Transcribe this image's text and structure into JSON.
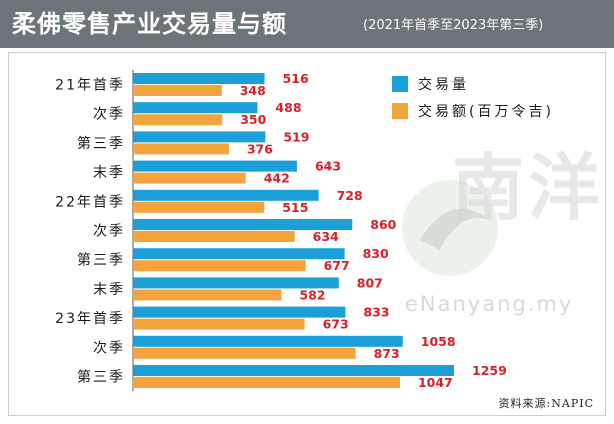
{
  "header": {
    "title": "柔佛零售产业交易量与额",
    "subtitle": "(2021年首季至2023年第三季)"
  },
  "legend": [
    {
      "label": "交易量",
      "color": "#1a9fd8"
    },
    {
      "label": "交易额(百万令吉)",
      "color": "#f5a33c"
    }
  ],
  "watermark": {
    "text": "南洋",
    "url": "eNanyang.my"
  },
  "source": "资料来源:NAPIC",
  "chart_data": {
    "type": "bar",
    "orientation": "horizontal",
    "categories": [
      "21年首季",
      "次季",
      "第三季",
      "末季",
      "22年首季",
      "次季",
      "第三季",
      "末季",
      "23年首季",
      "次季",
      "第三季"
    ],
    "series": [
      {
        "name": "交易量",
        "color": "#1a9fd8",
        "values": [
          516,
          488,
          519,
          643,
          728,
          860,
          830,
          807,
          833,
          1058,
          1259
        ]
      },
      {
        "name": "交易额(百万令吉)",
        "color": "#f5a33c",
        "values": [
          348,
          350,
          376,
          442,
          515,
          634,
          677,
          582,
          673,
          873,
          1047
        ]
      }
    ],
    "value_label_color": "#d8202a",
    "grid": false,
    "legend_position": "top-right"
  }
}
